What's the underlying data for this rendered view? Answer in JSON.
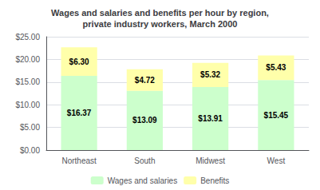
{
  "chart_data": {
    "type": "bar",
    "title": "Wages and salaries and benefits per hour by region,\nprivate industry workers, March 2000",
    "categories": [
      "Northeast",
      "South",
      "Midwest",
      "West"
    ],
    "series": [
      {
        "name": "Wages and salaries",
        "color": "#ccffcc",
        "values": [
          16.37,
          13.09,
          13.91,
          15.45
        ],
        "value_labels": [
          "$16.37",
          "$13.09",
          "$13.91",
          "$15.45"
        ]
      },
      {
        "name": "Benefits",
        "color": "#ffffaa",
        "values": [
          6.3,
          4.72,
          5.32,
          5.43
        ],
        "value_labels": [
          "$6.30",
          "$4.72",
          "$5.32",
          "$5.43"
        ]
      }
    ],
    "stacked": true,
    "data_labels": true,
    "ylim": [
      0,
      25
    ],
    "yticks": [
      {
        "value": 0,
        "label": "$0.00"
      },
      {
        "value": 5,
        "label": "$5.00"
      },
      {
        "value": 10,
        "label": "$10.00"
      },
      {
        "value": 15,
        "label": "$15.00"
      },
      {
        "value": 20,
        "label": "$20.00"
      },
      {
        "value": 25,
        "label": "$25.00"
      }
    ],
    "grid": true,
    "legend": "bottom"
  }
}
